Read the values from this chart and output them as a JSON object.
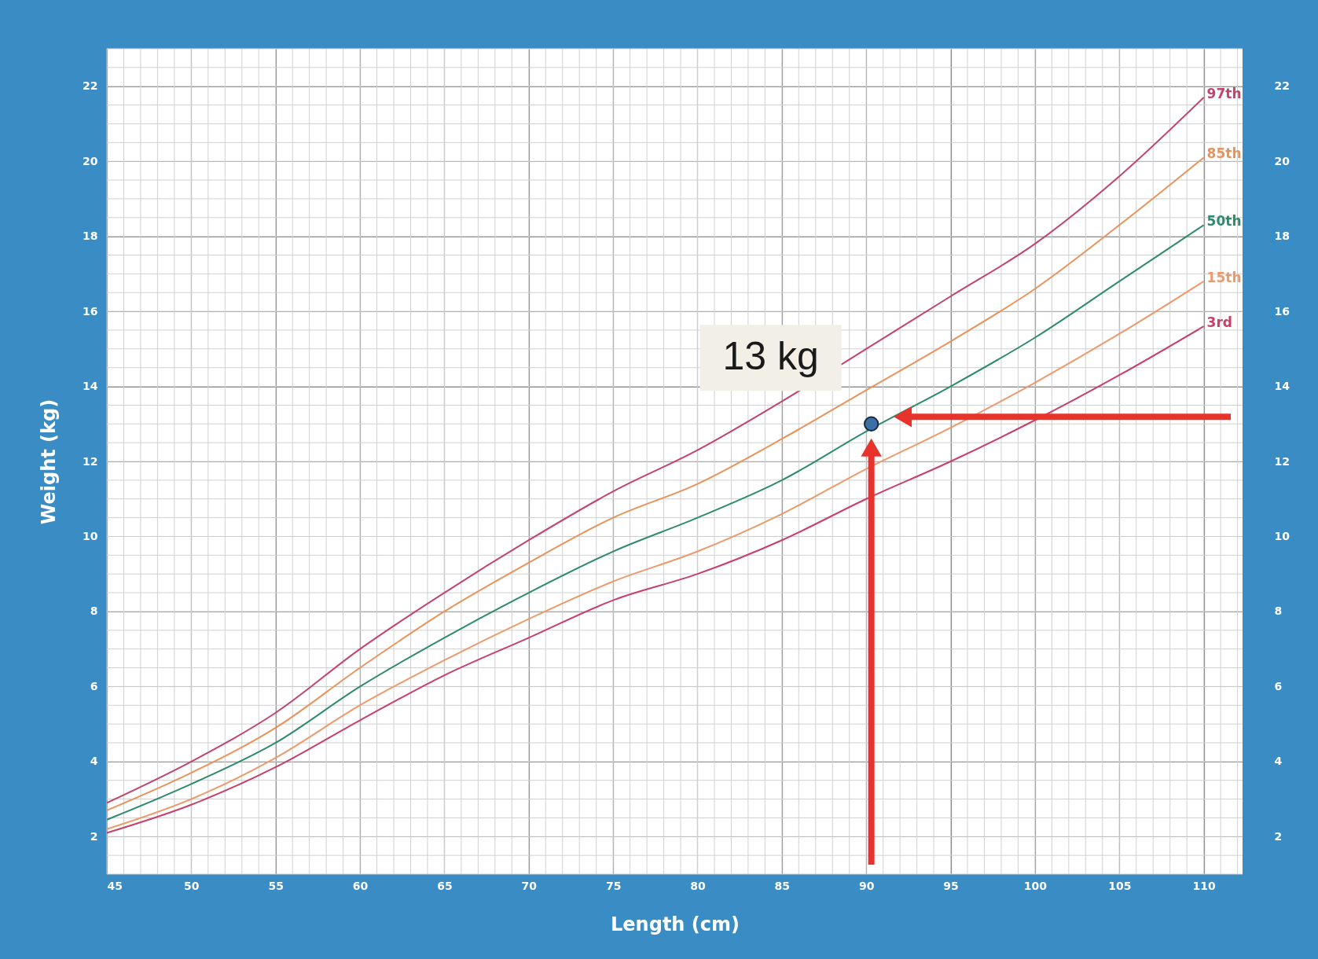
{
  "chart_data": {
    "type": "line",
    "xlabel": "Length (cm)",
    "ylabel": "Weight (kg)",
    "x": [
      45,
      50,
      55,
      60,
      65,
      70,
      75,
      80,
      85,
      90,
      95,
      100,
      105,
      110
    ],
    "series": [
      {
        "name": "97th",
        "color": "#c2446c",
        "values": [
          2.9,
          4.0,
          5.3,
          7.0,
          8.5,
          9.9,
          11.2,
          12.3,
          13.6,
          15.0,
          16.4,
          17.8,
          19.6,
          21.7
        ]
      },
      {
        "name": "85th",
        "color": "#e8935c",
        "values": [
          2.7,
          3.7,
          4.9,
          6.5,
          8.0,
          9.3,
          10.5,
          11.4,
          12.6,
          13.9,
          15.2,
          16.6,
          18.3,
          20.1
        ]
      },
      {
        "name": "50th",
        "color": "#2e8b6e",
        "values": [
          2.45,
          3.4,
          4.5,
          6.0,
          7.3,
          8.5,
          9.6,
          10.5,
          11.5,
          12.8,
          14.0,
          15.3,
          16.8,
          18.3
        ]
      },
      {
        "name": "15th",
        "color": "#ec9a6c",
        "values": [
          2.2,
          3.0,
          4.1,
          5.5,
          6.7,
          7.8,
          8.8,
          9.6,
          10.6,
          11.8,
          12.9,
          14.1,
          15.4,
          16.8
        ]
      },
      {
        "name": "3rd",
        "color": "#c83f6a",
        "values": [
          2.1,
          2.85,
          3.85,
          5.1,
          6.3,
          7.3,
          8.3,
          9.0,
          9.9,
          11.0,
          12.0,
          13.1,
          14.3,
          15.6
        ]
      },
      {
        "type": "scatter",
        "color": "#3a6fa8",
        "x": [
          90.3
        ],
        "values": [
          13
        ]
      }
    ],
    "annotations": [
      "13 kg"
    ],
    "xlim": [
      45,
      112.3
    ],
    "ylim": [
      1,
      23
    ],
    "y2lim": [
      1,
      23
    ],
    "xticks": [
      45,
      50,
      55,
      60,
      65,
      70,
      75,
      80,
      85,
      90,
      95,
      100,
      105,
      110
    ],
    "yticks": [
      2,
      4,
      6,
      8,
      10,
      12,
      14,
      16,
      18,
      20,
      22
    ],
    "y2ticks": [
      2,
      4,
      6,
      8,
      10,
      12,
      14,
      16,
      18,
      20,
      22
    ],
    "grid": true
  }
}
